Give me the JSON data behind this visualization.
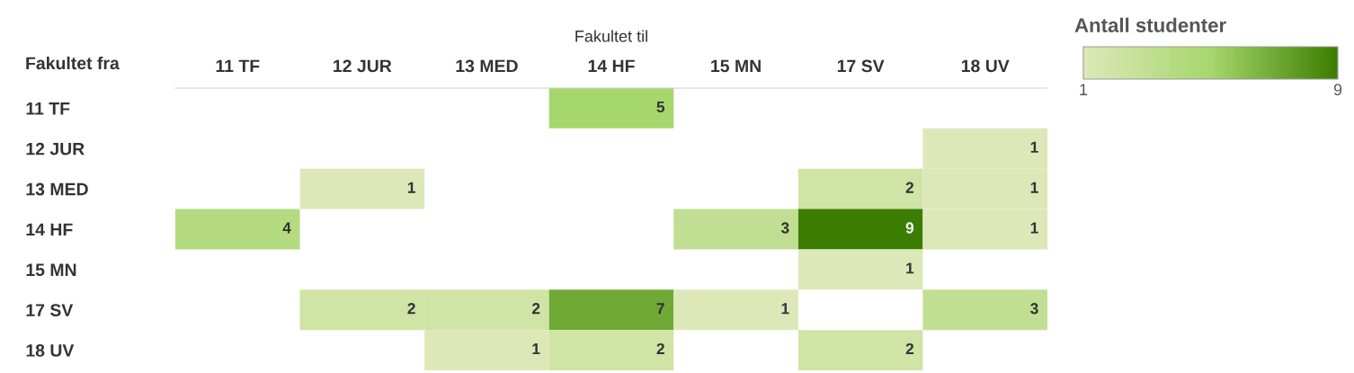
{
  "chart_data": {
    "type": "heatmap",
    "xlabel": "Fakultet til",
    "ylabel": "Fakultet fra",
    "clabel": "Antall studenter",
    "categories": [
      "11 TF",
      "12 JUR",
      "13 MED",
      "14 HF",
      "15 MN",
      "17 SV",
      "18 UV"
    ],
    "y_categories": [
      "11 TF",
      "12 JUR",
      "13 MED",
      "14 HF",
      "15 MN",
      "17 SV",
      "18 UV"
    ],
    "cells": [
      [
        null,
        null,
        null,
        5,
        null,
        null,
        null
      ],
      [
        null,
        null,
        null,
        null,
        null,
        null,
        1
      ],
      [
        null,
        1,
        null,
        null,
        null,
        2,
        1
      ],
      [
        4,
        null,
        null,
        null,
        3,
        9,
        1
      ],
      [
        null,
        null,
        null,
        null,
        null,
        1,
        null
      ],
      [
        null,
        2,
        2,
        7,
        1,
        null,
        3
      ],
      [
        null,
        null,
        1,
        2,
        null,
        2,
        null
      ]
    ],
    "colors": [
      "#dde8b8",
      "#a6d76c",
      "#3b7d00"
    ],
    "clim": [
      1,
      9
    ],
    "cticks": [
      1,
      9
    ],
    "data_labels": true,
    "grid": false
  }
}
